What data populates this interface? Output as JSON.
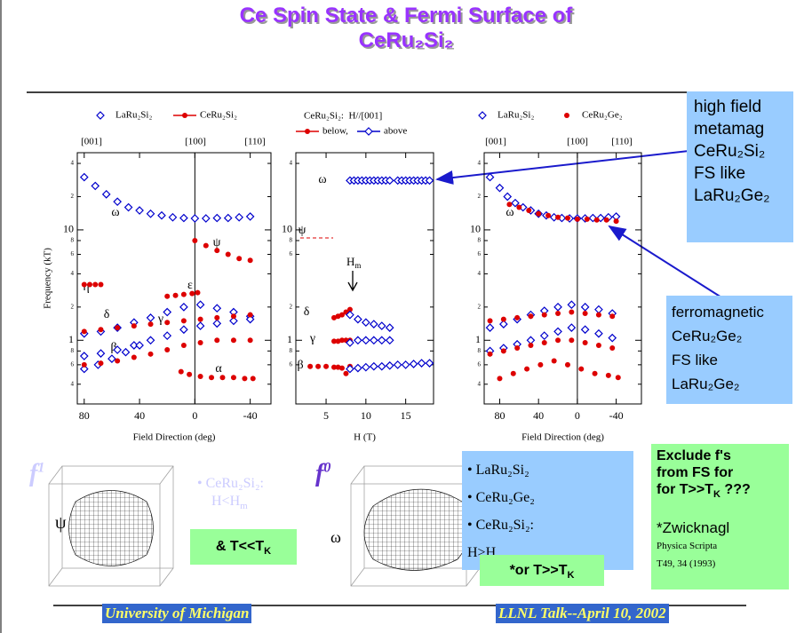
{
  "title": [
    "Ce Spin State & Fermi Surface of",
    "CeRu₂Si₂"
  ],
  "callout_metamag": [
    "high field",
    "metamag",
    "CeRu₂Si₂",
    "FS like",
    "LaRu₂Ge₂"
  ],
  "callout_ferro": [
    "ferromagnetic",
    "CeRu₂Ge₂",
    "FS like",
    "LaRu₂Ge₂"
  ],
  "exclude": {
    "lines": [
      "Exclude f's",
      "from FS for",
      "for T>>T"
    ],
    "sub": "K",
    "tail": " ???"
  },
  "reference": {
    "author": "*Zwicknagl",
    "lines": [
      "Physica Scripta",
      "T49, 34 (1993)"
    ]
  },
  "f1": {
    "symbol": "f",
    "sup": "1",
    "label": "ψ",
    "note": [
      "• CeRu₂Si₂:",
      "H<H"
    ],
    "note_sub": "m"
  },
  "f0": {
    "symbol": "f",
    "sup": "0",
    "label": "ω",
    "bullets": [
      "• LaRu₂Si₂",
      "• CeRu₂Ge₂",
      "• CeRu₂Si₂:",
      "H>H"
    ]
  },
  "low_T": {
    "text": "& T<<T",
    "sub": "K"
  },
  "high_T": {
    "text": "*or T>>T",
    "sub": "K"
  },
  "footer": [
    "University of Michigan",
    "LLNL Talk--April 10, 2002"
  ],
  "chart_data": [
    {
      "type": "scatter",
      "x_label": "Field Direction (deg)",
      "y_label": "Frequency (kT)",
      "y_scale": "log",
      "xlim": [
        85,
        -55
      ],
      "ylim": [
        0.265,
        50
      ],
      "xticks": [
        80,
        40,
        0,
        -40
      ],
      "vline_at": 0,
      "yticks": [
        {
          "value": 0.4,
          "label": "4"
        },
        {
          "value": 0.6,
          "label": "6"
        },
        {
          "value": 0.8,
          "label": "8"
        },
        1,
        2,
        4,
        6,
        8,
        10,
        {
          "value": 20,
          "label": "2"
        },
        {
          "value": 40,
          "label": "4"
        }
      ],
      "direction_labels": [
        "[001]",
        "[100]",
        "[110]"
      ],
      "branch_labels": [
        "ω",
        "ψ",
        "η",
        "ε",
        "δ",
        "γ",
        "β",
        "α"
      ],
      "series": [
        {
          "name": "LaRu₂Si₂",
          "color": "#0000cc",
          "marker": "diamond",
          "x": [
            80,
            72,
            64,
            56,
            48,
            40,
            32,
            24,
            16,
            8,
            0,
            -8,
            -16,
            -24,
            -32,
            -40,
            80,
            68,
            56,
            44,
            32,
            20,
            8,
            -4,
            -16,
            -28,
            -40,
            80,
            68,
            56,
            44,
            32,
            20,
            8,
            -4,
            -16,
            -28,
            -40,
            80,
            70,
            60,
            50,
            40
          ],
          "values": [
            30,
            25,
            21,
            18,
            16,
            15,
            14,
            13.5,
            13,
            12.8,
            12.7,
            12.7,
            12.8,
            12.8,
            13,
            13.2,
            1.15,
            1.2,
            1.3,
            1.45,
            1.6,
            1.8,
            2.0,
            2.1,
            1.95,
            1.8,
            1.65,
            0.72,
            0.76,
            0.82,
            0.9,
            1.0,
            1.1,
            1.25,
            1.35,
            1.42,
            1.5,
            1.55,
            0.55,
            0.6,
            0.68,
            0.78,
            0.9
          ]
        },
        {
          "name": "CeRu₂Si₂",
          "color": "#dd0000",
          "marker": "dot",
          "x": [
            0,
            -8,
            -16,
            -24,
            -32,
            -40,
            80,
            76,
            72,
            68,
            20,
            14,
            8,
            2,
            -2,
            80,
            68,
            56,
            44,
            32,
            20,
            8,
            -4,
            -16,
            -28,
            -40,
            80,
            68,
            56,
            44,
            32,
            20,
            8,
            -4,
            -16,
            -28,
            -40,
            10,
            4,
            -4,
            -12,
            -20,
            -28,
            -36,
            -42
          ],
          "values": [
            8,
            7.2,
            6.5,
            6,
            5.5,
            5.3,
            3.2,
            3.2,
            3.2,
            3.2,
            2.5,
            2.55,
            2.6,
            2.65,
            2.7,
            1.2,
            1.25,
            1.3,
            1.35,
            1.4,
            1.45,
            1.5,
            1.55,
            1.6,
            1.65,
            1.7,
            0.6,
            0.62,
            0.65,
            0.7,
            0.75,
            0.82,
            0.9,
            0.95,
            1.0,
            1.0,
            1.0,
            0.52,
            0.49,
            0.47,
            0.46,
            0.46,
            0.46,
            0.45,
            0.45
          ]
        }
      ]
    },
    {
      "type": "scatter",
      "x_label": "H (T)",
      "y_scale": "log",
      "xlim": [
        1.2,
        18.5
      ],
      "ylim": [
        0.265,
        50
      ],
      "xticks": [
        5,
        10,
        15
      ],
      "yticks": [
        {
          "value": 0.6,
          "label": "6"
        },
        {
          "value": 0.8,
          "label": "8"
        },
        1,
        2,
        {
          "value": 6,
          "label": "6"
        },
        {
          "value": 8,
          "label": "8"
        },
        10,
        {
          "value": 40,
          "label": "4"
        }
      ],
      "legend_title": "CeRu₂Si₂:  H//[001]",
      "branch_labels": [
        "ω",
        "ψ",
        "δ",
        "γ",
        "β"
      ],
      "field_marker": {
        "text": "H",
        "sub": "m"
      },
      "series": [
        {
          "name": "below,",
          "color": "#dd0000",
          "marker": "dot",
          "x": [
            3,
            4,
            5,
            6,
            6.5,
            7,
            7.5,
            8,
            6,
            6.5,
            7,
            7.5,
            8,
            6,
            6.5,
            7,
            7.5,
            8
          ],
          "values": [
            0.58,
            0.58,
            0.58,
            0.57,
            0.57,
            0.56,
            0.5,
            0.58,
            0.98,
            0.98,
            1.0,
            1.0,
            1.0,
            1.6,
            1.65,
            1.7,
            1.8,
            1.9
          ]
        },
        {
          "name": "above",
          "color": "#0000cc",
          "marker": "diamond",
          "x": [
            8,
            8.5,
            9,
            9.5,
            10,
            10.5,
            11,
            11.5,
            12,
            12.5,
            13,
            14,
            14.5,
            15,
            15.5,
            16,
            16.5,
            17,
            17.5,
            18,
            8,
            9,
            10,
            11,
            12,
            13,
            14,
            15,
            16,
            17,
            18,
            8,
            9,
            10,
            11,
            12,
            13,
            8,
            9,
            10,
            11,
            12,
            13
          ],
          "values": [
            28,
            28,
            28,
            28,
            28,
            28,
            28,
            28,
            28,
            28,
            28,
            28,
            28,
            28,
            28,
            28,
            28,
            28,
            28,
            28,
            0.55,
            0.56,
            0.57,
            0.58,
            0.58,
            0.59,
            0.6,
            0.6,
            0.61,
            0.62,
            0.62,
            0.95,
            1.0,
            1.0,
            1.0,
            1.0,
            1.0,
            1.7,
            1.55,
            1.45,
            1.4,
            1.35,
            1.3
          ]
        }
      ]
    },
    {
      "type": "scatter",
      "x_label": "Field Direction (deg)",
      "y_scale": "log",
      "xlim": [
        96,
        -66
      ],
      "ylim": [
        0.265,
        50
      ],
      "xticks": [
        80,
        40,
        0,
        -40
      ],
      "vline_at": 0,
      "yticks": [
        {
          "value": 0.4,
          "label": "4"
        },
        {
          "value": 0.6,
          "label": "6"
        },
        {
          "value": 0.8,
          "label": "8"
        },
        1,
        2,
        4,
        6,
        8,
        10,
        {
          "value": 20,
          "label": "2"
        },
        {
          "value": 40,
          "label": "4"
        }
      ],
      "direction_labels": [
        "[001]",
        "[100]",
        "[110]"
      ],
      "branch_labels": [
        "ω"
      ],
      "series": [
        {
          "name": "LaRu₂Si₂",
          "color": "#0000cc",
          "marker": "diamond",
          "x": [
            90,
            80,
            72,
            64,
            56,
            48,
            40,
            32,
            24,
            16,
            8,
            0,
            -8,
            -16,
            -24,
            -32,
            -40,
            90,
            76,
            62,
            48,
            34,
            20,
            6,
            -8,
            -22,
            -36,
            90,
            76,
            62,
            48,
            34,
            20,
            6,
            -8,
            -22,
            -36
          ],
          "values": [
            30,
            24,
            20,
            17.5,
            16,
            15,
            14,
            13.5,
            13,
            12.8,
            12.7,
            12.7,
            12.7,
            12.8,
            12.8,
            13,
            13.2,
            1.3,
            1.4,
            1.55,
            1.7,
            1.85,
            2.0,
            2.1,
            2.0,
            1.9,
            1.75,
            0.8,
            0.85,
            0.92,
            1.0,
            1.1,
            1.2,
            1.3,
            1.25,
            1.15,
            1.05
          ]
        },
        {
          "name": "CeRu₂Ge₂",
          "color": "#dd0000",
          "marker": "dot",
          "x": [
            70,
            60,
            50,
            40,
            30,
            20,
            10,
            0,
            -10,
            -20,
            -30,
            -40,
            90,
            76,
            62,
            48,
            34,
            20,
            6,
            -8,
            -22,
            -36,
            90,
            76,
            62,
            48,
            34,
            20,
            6,
            -8,
            -22,
            -36,
            80,
            66,
            52,
            38,
            24,
            10,
            -4,
            -18,
            -32,
            -42
          ],
          "values": [
            17,
            16,
            15,
            14,
            13.5,
            13,
            12.8,
            12.5,
            12.5,
            12.3,
            12.3,
            12,
            1.5,
            1.55,
            1.6,
            1.65,
            1.7,
            1.75,
            1.8,
            1.75,
            1.7,
            1.65,
            0.75,
            0.8,
            0.85,
            0.9,
            0.95,
            1.0,
            1.0,
            0.95,
            0.9,
            0.85,
            0.45,
            0.5,
            0.55,
            0.6,
            0.65,
            0.6,
            0.55,
            0.5,
            0.48,
            0.46
          ]
        }
      ]
    }
  ]
}
